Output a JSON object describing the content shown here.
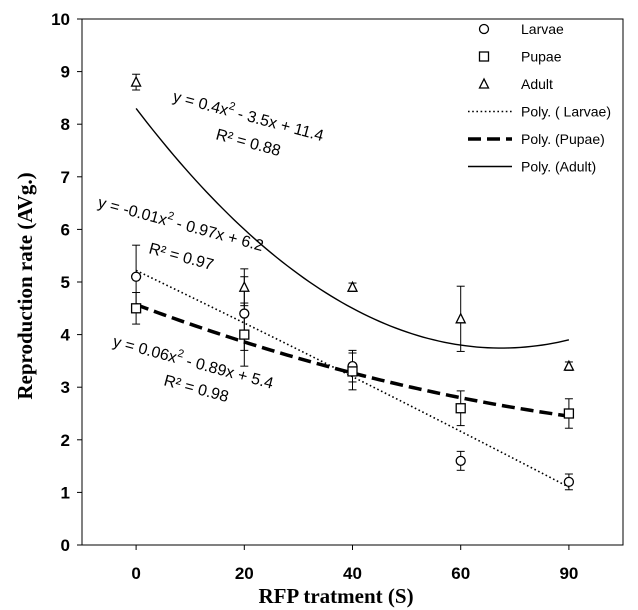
{
  "chart_data": {
    "type": "scatter",
    "title": "",
    "xlabel": "RFP tratment (S)",
    "ylabel": "Reproduction rate (AVg.)",
    "categories": [
      "0",
      "20",
      "40",
      "60",
      "90"
    ],
    "yticks": [
      "0",
      "1",
      "2",
      "3",
      "4",
      "5",
      "6",
      "7",
      "8",
      "9",
      "10"
    ],
    "ylim": [
      0,
      10
    ],
    "grid": false,
    "legend_position": "top-right",
    "series": [
      {
        "name": "Larvae",
        "marker": "circle",
        "values": [
          5.1,
          4.4,
          3.4,
          1.6,
          1.2
        ],
        "errors": [
          0.6,
          0.7,
          0.3,
          0.18,
          0.15
        ]
      },
      {
        "name": "Pupae",
        "marker": "square",
        "values": [
          4.5,
          4.0,
          3.3,
          2.6,
          2.5
        ],
        "errors": [
          0.3,
          0.6,
          0.35,
          0.33,
          0.28
        ]
      },
      {
        "name": "Adult",
        "marker": "triangle",
        "values": [
          8.8,
          4.9,
          4.9,
          4.3,
          3.4
        ],
        "errors": [
          0.15,
          0.35,
          0.08,
          0.62,
          0.08
        ]
      }
    ],
    "trendlines": [
      {
        "name": "Poly. ( Larvae)",
        "style": "dotted",
        "coef": [
          -0.01,
          -0.97,
          6.2
        ]
      },
      {
        "name": "Poly. (Pupae)",
        "style": "dashed",
        "coef": [
          0.06,
          -0.89,
          5.4
        ]
      },
      {
        "name": "Poly. (Adult)",
        "style": "solid",
        "coef": [
          0.4,
          -3.5,
          11.4
        ]
      }
    ],
    "annotations": [
      {
        "eq_lead": "y = 0.4x",
        "eq_exp": "2",
        "eq_tail": " - 3.5x + 11.4",
        "r2_label": "R² = 0.88"
      },
      {
        "eq_lead": "y = -0.01x",
        "eq_exp": "2",
        "eq_tail": " - 0.97x + 6.2",
        "r2_label": "R² = 0.97"
      },
      {
        "eq_lead": "y = 0.06x",
        "eq_exp": "2",
        "eq_tail": " - 0.89x + 5.4",
        "r2_label": "R² = 0.98"
      }
    ]
  }
}
